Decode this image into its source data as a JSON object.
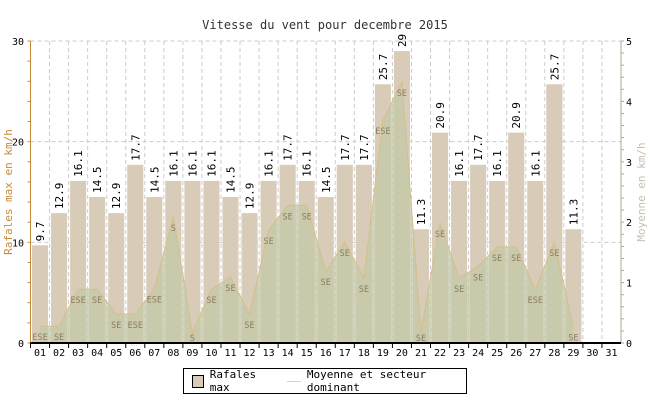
{
  "chart_data": {
    "type": "bar",
    "title": "Vitesse du vent pour decembre 2015",
    "ylabel": "Rafales max en km/h",
    "y2label": "Moyenne en km/h",
    "ylim": [
      0,
      30
    ],
    "y2lim": [
      0,
      5
    ],
    "yticks": [
      "0",
      "10",
      "20",
      "30"
    ],
    "y2ticks": [
      "0",
      "1",
      "2",
      "3",
      "4",
      "5"
    ],
    "categories": [
      "01",
      "02",
      "03",
      "04",
      "05",
      "06",
      "07",
      "08",
      "09",
      "10",
      "11",
      "12",
      "13",
      "14",
      "15",
      "16",
      "17",
      "18",
      "19",
      "20",
      "21",
      "22",
      "23",
      "24",
      "25",
      "26",
      "27",
      "28",
      "29",
      "30",
      "31"
    ],
    "series": [
      {
        "name": "Rafales max",
        "type": "bar",
        "axis": "left",
        "values": [
          9.7,
          12.9,
          16.1,
          14.5,
          12.9,
          17.7,
          14.5,
          16.1,
          16.1,
          16.1,
          14.5,
          12.9,
          16.1,
          17.7,
          16.1,
          14.5,
          17.7,
          17.7,
          25.7,
          29.0,
          11.3,
          20.9,
          16.1,
          17.7,
          16.1,
          20.9,
          16.1,
          25.7,
          11.3,
          null,
          null
        ]
      },
      {
        "name": "Moyenne et secteur dominant",
        "type": "area",
        "axis": "right",
        "values": [
          0.28,
          0.28,
          0.89,
          0.89,
          0.48,
          0.48,
          0.9,
          2.09,
          0.17,
          0.89,
          1.09,
          0.48,
          1.87,
          2.28,
          2.28,
          1.19,
          1.67,
          1.08,
          3.69,
          4.32,
          0.18,
          1.99,
          1.08,
          1.27,
          1.59,
          1.59,
          0.89,
          1.67,
          0.27,
          null,
          null
        ],
        "directions": [
          "ESE",
          "SE",
          "ESE",
          "SE",
          "SE",
          "ESE",
          "ESE",
          "S",
          "S",
          "SE",
          "SE",
          "SE",
          "SE",
          "SE",
          "SE",
          "SE",
          "SE",
          "SE",
          "ESE",
          "SE",
          "SE",
          "SE",
          "SE",
          "SE",
          "SE",
          "SE",
          "ESE",
          "SE",
          "SE",
          null,
          null
        ]
      }
    ],
    "colors": {
      "bar": "#d8cbb8",
      "area": "#c4c8a8",
      "line": "#d6bf8a",
      "left_axis": "#c8893a",
      "right_axis": "#b0a898"
    },
    "grid": true,
    "legend": "bottom"
  }
}
